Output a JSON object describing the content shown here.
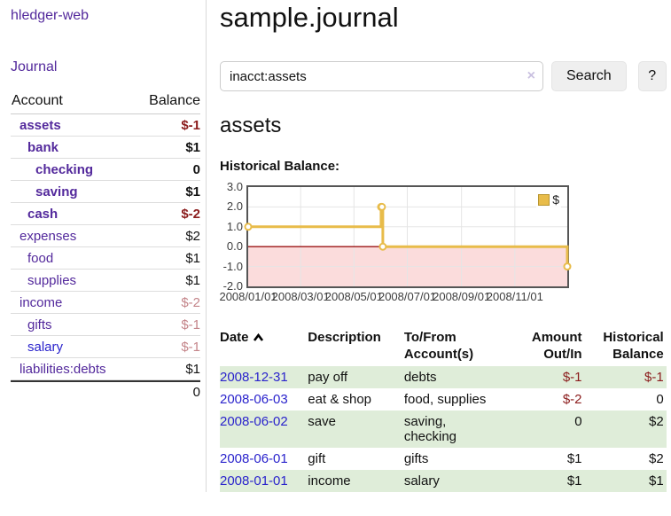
{
  "app": {
    "brand": "hledger-web"
  },
  "nav": {
    "journal": "Journal"
  },
  "colors": {
    "link_purple": "#53299c",
    "link_blue": "#2a23cc",
    "negative_strong": "#8b1c1c",
    "negative_soft": "#c4858a",
    "row_green": "#dfedd9",
    "chart_gold": "#e8bc4a",
    "chart_negative_region": "#fbdcdc",
    "chart_zero_line": "#9b1313",
    "chart_border": "#555555"
  },
  "sidebar": {
    "header": {
      "account": "Account",
      "balance": "Balance"
    },
    "accounts": [
      {
        "name": "assets",
        "balance": "$-1"
      },
      {
        "name": "bank",
        "balance": "$1"
      },
      {
        "name": "checking",
        "balance": "0"
      },
      {
        "name": "saving",
        "balance": "$1"
      },
      {
        "name": "cash",
        "balance": "$-2"
      },
      {
        "name": "expenses",
        "balance": "$2"
      },
      {
        "name": "food",
        "balance": "$1"
      },
      {
        "name": "supplies",
        "balance": "$1"
      },
      {
        "name": "income",
        "balance": "$-2"
      },
      {
        "name": "gifts",
        "balance": "$-1"
      },
      {
        "name": "salary",
        "balance": "$-1"
      },
      {
        "name": "liabilities:debts",
        "balance": "$1"
      }
    ],
    "total": "0"
  },
  "header": {
    "title": "sample.journal"
  },
  "search": {
    "value": "inacct:assets",
    "clear_icon": "×",
    "button_label": "Search",
    "help_label": "?"
  },
  "account_page": {
    "title": "assets",
    "chart_heading": "Historical Balance:"
  },
  "chart_data": {
    "type": "line",
    "step": true,
    "title": "Historical Balance:",
    "legend": [
      {
        "label": "$",
        "color": "#e8bc4a"
      }
    ],
    "legend_position": "top-right",
    "grid": true,
    "x_domain": [
      "2008-01-01",
      "2008-12-31"
    ],
    "ylim": [
      -2.0,
      3.0
    ],
    "y_ticks": [
      {
        "label": "3.0",
        "value": 3
      },
      {
        "label": "2.0",
        "value": 2
      },
      {
        "label": "1.0",
        "value": 1
      },
      {
        "label": "0.0",
        "value": 0
      },
      {
        "label": "-1.0",
        "value": -1
      },
      {
        "label": "-2.0",
        "value": -2
      }
    ],
    "x_ticks": [
      {
        "label": "2008/01/01",
        "date": "2008-01-01"
      },
      {
        "label": "2008/03/01",
        "date": "2008-03-01"
      },
      {
        "label": "2008/05/01",
        "date": "2008-05-01"
      },
      {
        "label": "2008/07/01",
        "date": "2008-07-01"
      },
      {
        "label": "2008/09/01",
        "date": "2008-09-01"
      },
      {
        "label": "2008/11/01",
        "date": "2008-11-01"
      }
    ],
    "series": [
      {
        "name": "$",
        "color": "#e8bc4a",
        "points": [
          {
            "date": "2008-01-01",
            "value": 1
          },
          {
            "date": "2008-06-01",
            "value": 2
          },
          {
            "date": "2008-06-02",
            "value": 2
          },
          {
            "date": "2008-06-03",
            "value": 0
          },
          {
            "date": "2008-12-31",
            "value": -1
          }
        ]
      }
    ]
  },
  "register": {
    "headers": {
      "date": "Date",
      "description": "Description",
      "accounts": "To/From Account(s)",
      "amount": "Amount Out/In",
      "balance": "Historical Balance"
    },
    "sort_icon": "chevron-up-icon",
    "rows": [
      {
        "date": "2008-12-31",
        "description": "pay off",
        "accounts": "debts",
        "amount": "$-1",
        "balance": "$-1"
      },
      {
        "date": "2008-06-03",
        "description": "eat & shop",
        "accounts": "food, supplies",
        "amount": "$-2",
        "balance": "0"
      },
      {
        "date": "2008-06-02",
        "description": "save",
        "accounts": "saving, checking",
        "amount": "0",
        "balance": "$2"
      },
      {
        "date": "2008-06-01",
        "description": "gift",
        "accounts": "gifts",
        "amount": "$1",
        "balance": "$2"
      },
      {
        "date": "2008-01-01",
        "description": "income",
        "accounts": "salary",
        "amount": "$1",
        "balance": "$1"
      }
    ]
  }
}
